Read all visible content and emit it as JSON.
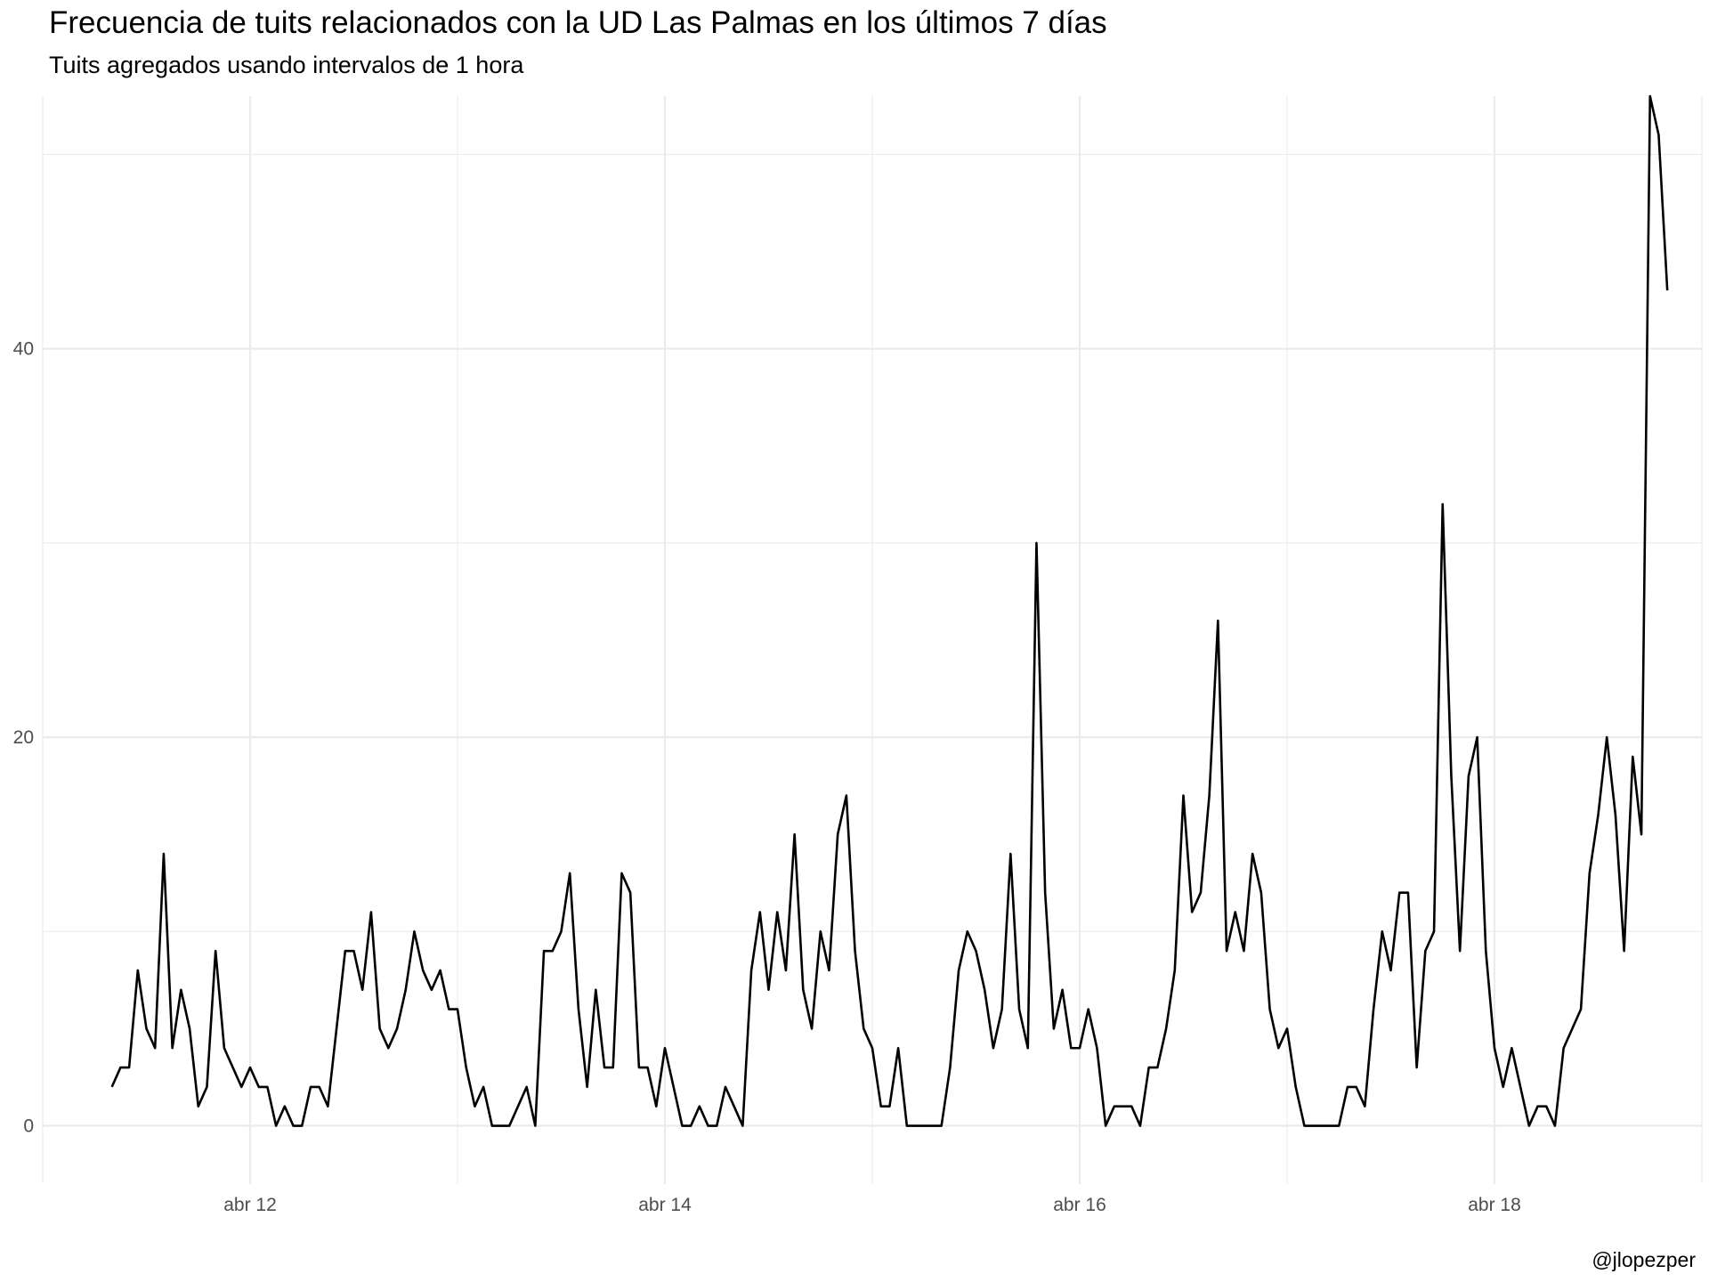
{
  "chart_data": {
    "type": "line",
    "title": "Frecuencia de tuits relacionados con la UD Las Palmas en los últimos 7 días",
    "subtitle": "Tuits agregados usando intervalos de 1 hora",
    "caption": "@jlopezper",
    "xlabel": "",
    "ylabel": "",
    "grid": true,
    "line_color": "#000000",
    "x_axis": {
      "type": "date",
      "start": "2021-04-11 08:00",
      "interval": "1 hour",
      "range": [
        "2021-04-11 00:00",
        "2021-04-19 00:00"
      ],
      "ticks": [
        {
          "date": "2021-04-12",
          "label": "abr 12"
        },
        {
          "date": "2021-04-14",
          "label": "abr 14"
        },
        {
          "date": "2021-04-16",
          "label": "abr 16"
        },
        {
          "date": "2021-04-18",
          "label": "abr 18"
        }
      ]
    },
    "y_axis": {
      "range": [
        -3,
        53
      ],
      "ticks": [
        0,
        20,
        40
      ],
      "tick_labels": [
        "0",
        "20",
        "40"
      ]
    },
    "series": [
      {
        "values": [
          2,
          3,
          3,
          8,
          5,
          4,
          14,
          4,
          7,
          5,
          1,
          2,
          9,
          4,
          3,
          2,
          3,
          2,
          2,
          0,
          1,
          0,
          0,
          2,
          2,
          1,
          5,
          9,
          9,
          7,
          11,
          5,
          4,
          5,
          7,
          10,
          8,
          7,
          8,
          6,
          6,
          3,
          1,
          2,
          0,
          0,
          0,
          1,
          2,
          0,
          9,
          9,
          10,
          13,
          6,
          2,
          7,
          3,
          3,
          13,
          12,
          3,
          3,
          1,
          4,
          2,
          0,
          0,
          1,
          0,
          0,
          2,
          1,
          0,
          8,
          11,
          7,
          11,
          8,
          15,
          7,
          5,
          10,
          8,
          15,
          17,
          9,
          5,
          4,
          1,
          1,
          4,
          0,
          0,
          0,
          0,
          0,
          3,
          8,
          10,
          9,
          7,
          4,
          6,
          14,
          6,
          4,
          30,
          12,
          5,
          7,
          4,
          4,
          6,
          4,
          0,
          1,
          1,
          1,
          0,
          3,
          3,
          5,
          8,
          17,
          11,
          12,
          17,
          26,
          9,
          11,
          9,
          14,
          12,
          6,
          4,
          5,
          2,
          0,
          0,
          0,
          0,
          0,
          2,
          2,
          1,
          6,
          10,
          8,
          12,
          12,
          3,
          9,
          10,
          32,
          18,
          9,
          18,
          20,
          9,
          4,
          2,
          4,
          2,
          0,
          1,
          1,
          0,
          4,
          5,
          6,
          13,
          16,
          20,
          16,
          9,
          19,
          15,
          53,
          51,
          43
        ]
      }
    ]
  }
}
